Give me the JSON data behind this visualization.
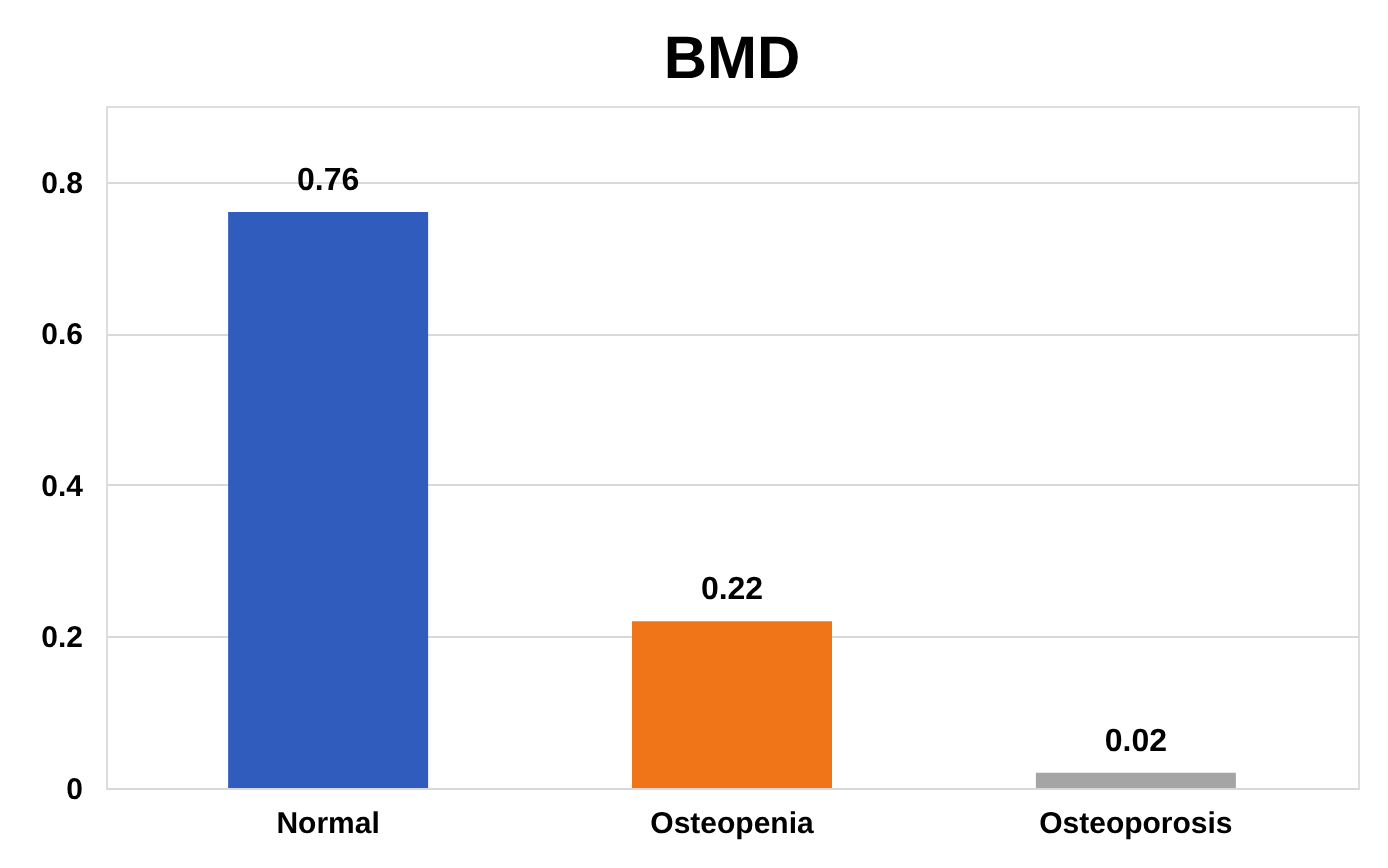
{
  "chart_data": {
    "type": "bar",
    "title": "BMD",
    "categories": [
      "Normal",
      "Osteopenia",
      "Osteoporosis"
    ],
    "values": [
      0.76,
      0.22,
      0.02
    ],
    "colors": [
      "#2f5cbd",
      "#f07518",
      "#a5a5a5"
    ],
    "ylim": [
      0,
      0.9
    ],
    "yticks": [
      0,
      0.2,
      0.4,
      0.6,
      0.8
    ],
    "grid": "y",
    "data_labels": true,
    "legend": false
  }
}
